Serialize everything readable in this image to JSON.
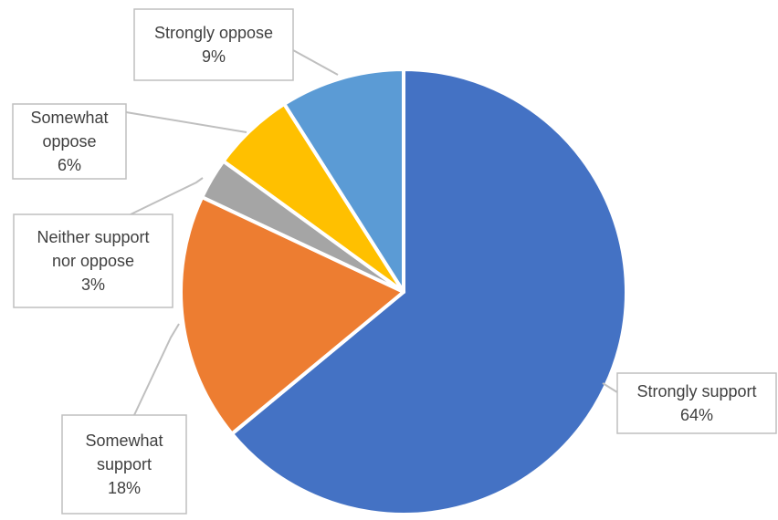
{
  "chart_data": {
    "type": "pie",
    "title": "",
    "start_angle_deg": 0,
    "direction": "clockwise",
    "slices": [
      {
        "label_lines": [
          "Strongly support"
        ],
        "pct_text": "64%",
        "value": 64,
        "color": "#4472C4"
      },
      {
        "label_lines": [
          "Somewhat",
          "support"
        ],
        "pct_text": "18%",
        "value": 18,
        "color": "#ED7D31"
      },
      {
        "label_lines": [
          "Neither support",
          "nor oppose"
        ],
        "pct_text": "3%",
        "value": 3,
        "color": "#A5A5A5"
      },
      {
        "label_lines": [
          "Somewhat",
          "oppose"
        ],
        "pct_text": "6%",
        "value": 6,
        "color": "#FFC000"
      },
      {
        "label_lines": [
          "Strongly oppose"
        ],
        "pct_text": "9%",
        "value": 9,
        "color": "#5B9BD5"
      }
    ],
    "label_style": "callout boxes with leader lines",
    "legend": "none"
  }
}
